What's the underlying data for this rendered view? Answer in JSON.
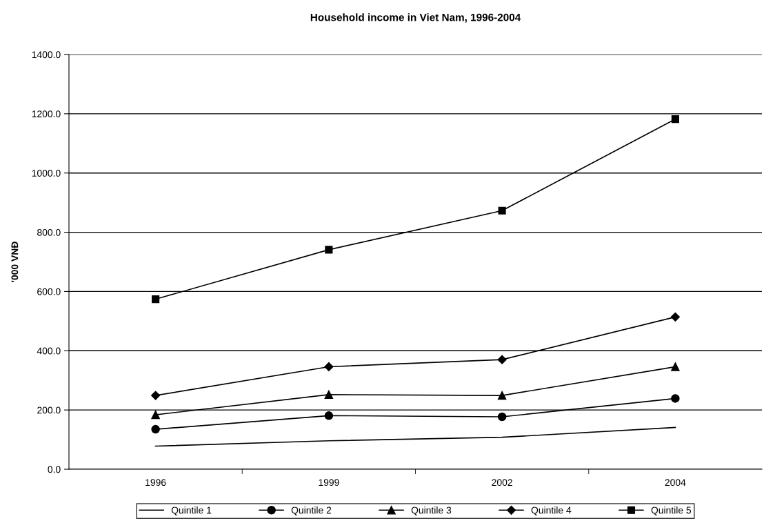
{
  "chart_data": {
    "type": "line",
    "title": "Household income in Viet Nam, 1996-2004",
    "ylabel": "'000 VNĐ",
    "categories": [
      "1996",
      "1999",
      "2002",
      "2004"
    ],
    "series": [
      {
        "name": "Quintile 1",
        "color": "#000000",
        "marker": "none",
        "values": [
          78,
          96,
          108,
          141
        ]
      },
      {
        "name": "Quintile 2",
        "color": "#000000",
        "marker": "circle",
        "values": [
          135,
          181,
          177,
          239
        ]
      },
      {
        "name": "Quintile 3",
        "color": "#000000",
        "marker": "triangle",
        "values": [
          184,
          252,
          249,
          346
        ]
      },
      {
        "name": "Quintile 4",
        "color": "#000000",
        "marker": "diamond",
        "values": [
          249,
          346,
          370,
          514
        ]
      },
      {
        "name": "Quintile 5",
        "color": "#000000",
        "marker": "square",
        "values": [
          574,
          741,
          873,
          1182
        ]
      }
    ],
    "ylim": [
      0,
      1400
    ],
    "yticks": [
      {
        "value": 0,
        "label": "0.0"
      },
      {
        "value": 200,
        "label": "200.0"
      },
      {
        "value": 400,
        "label": "400.0"
      },
      {
        "value": 600,
        "label": "600.0"
      },
      {
        "value": 800,
        "label": "800.0"
      },
      {
        "value": 1000,
        "label": "1000.0"
      },
      {
        "value": 1200,
        "label": "1200.0"
      },
      {
        "value": 1400,
        "label": "1400.0"
      }
    ],
    "grid": "y",
    "legend": "bottom",
    "line_style": "solid"
  }
}
